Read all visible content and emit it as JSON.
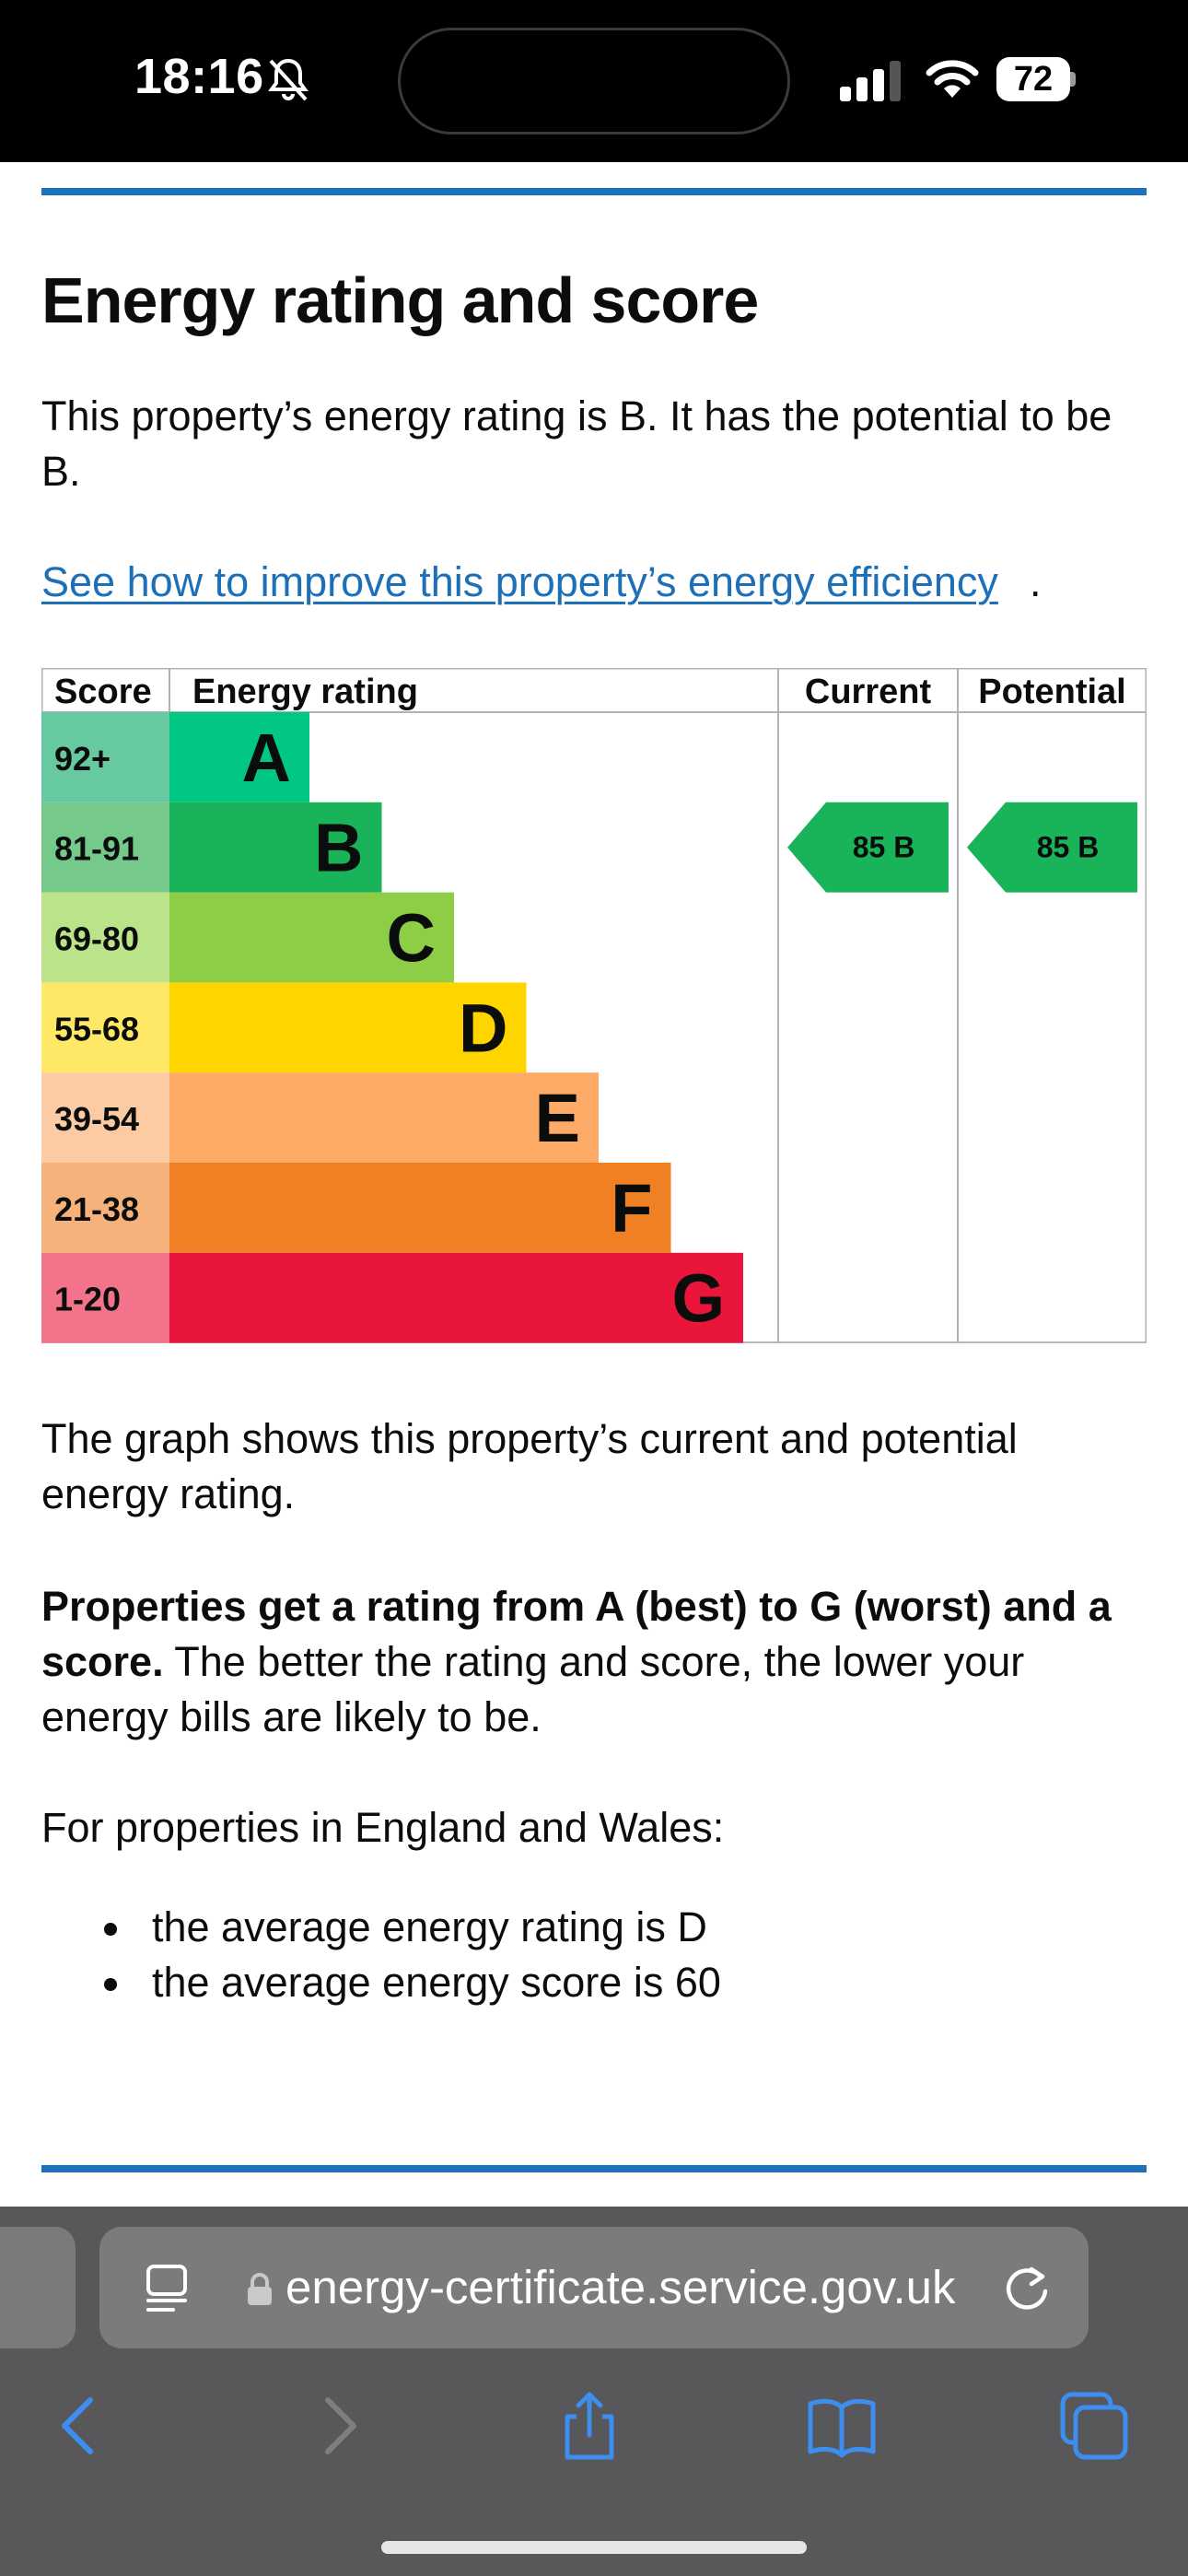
{
  "status_bar": {
    "time": "18:16",
    "battery": "72"
  },
  "page": {
    "heading": "Energy rating and score",
    "intro": "This property’s energy rating is B. It has the potential to be B.",
    "improve_link": "See how to improve this property’s energy efficiency",
    "improve_link_suffix": ".",
    "graph_note": "The graph shows this property’s current and potential energy rating.",
    "rating_intro_bold": "Properties get a rating from A (best) to G (worst) and a score.",
    "rating_intro_rest": " The better the rating and score, the lower your energy bills are likely to be.",
    "region_note": "For properties in England and Wales:",
    "bullets": [
      "the average energy rating is D",
      "the average energy score is 60"
    ]
  },
  "chart_data": {
    "type": "table",
    "headers": {
      "score": "Score",
      "rating": "Energy rating",
      "current": "Current",
      "potential": "Potential"
    },
    "bands": [
      {
        "score": "92+",
        "letter": "A",
        "color": "#00c781",
        "score_bg": "#66c9a0"
      },
      {
        "score": "81-91",
        "letter": "B",
        "color": "#19b459",
        "score_bg": "#75c98b"
      },
      {
        "score": "69-80",
        "letter": "C",
        "color": "#8dce46",
        "score_bg": "#bbe38a"
      },
      {
        "score": "55-68",
        "letter": "D",
        "color": "#ffd500",
        "score_bg": "#ffe866"
      },
      {
        "score": "39-54",
        "letter": "E",
        "color": "#fcaa65",
        "score_bg": "#fdcba3"
      },
      {
        "score": "21-38",
        "letter": "F",
        "color": "#ef8023",
        "score_bg": "#f5b27b"
      },
      {
        "score": "1-20",
        "letter": "G",
        "color": "#e9153b",
        "score_bg": "#f2738a"
      }
    ],
    "current": {
      "score": 85,
      "letter": "B",
      "color": "#19b459"
    },
    "potential": {
      "score": 85,
      "letter": "B",
      "color": "#19b459"
    }
  },
  "browser": {
    "url": "energy-certificate.service.gov.uk"
  }
}
